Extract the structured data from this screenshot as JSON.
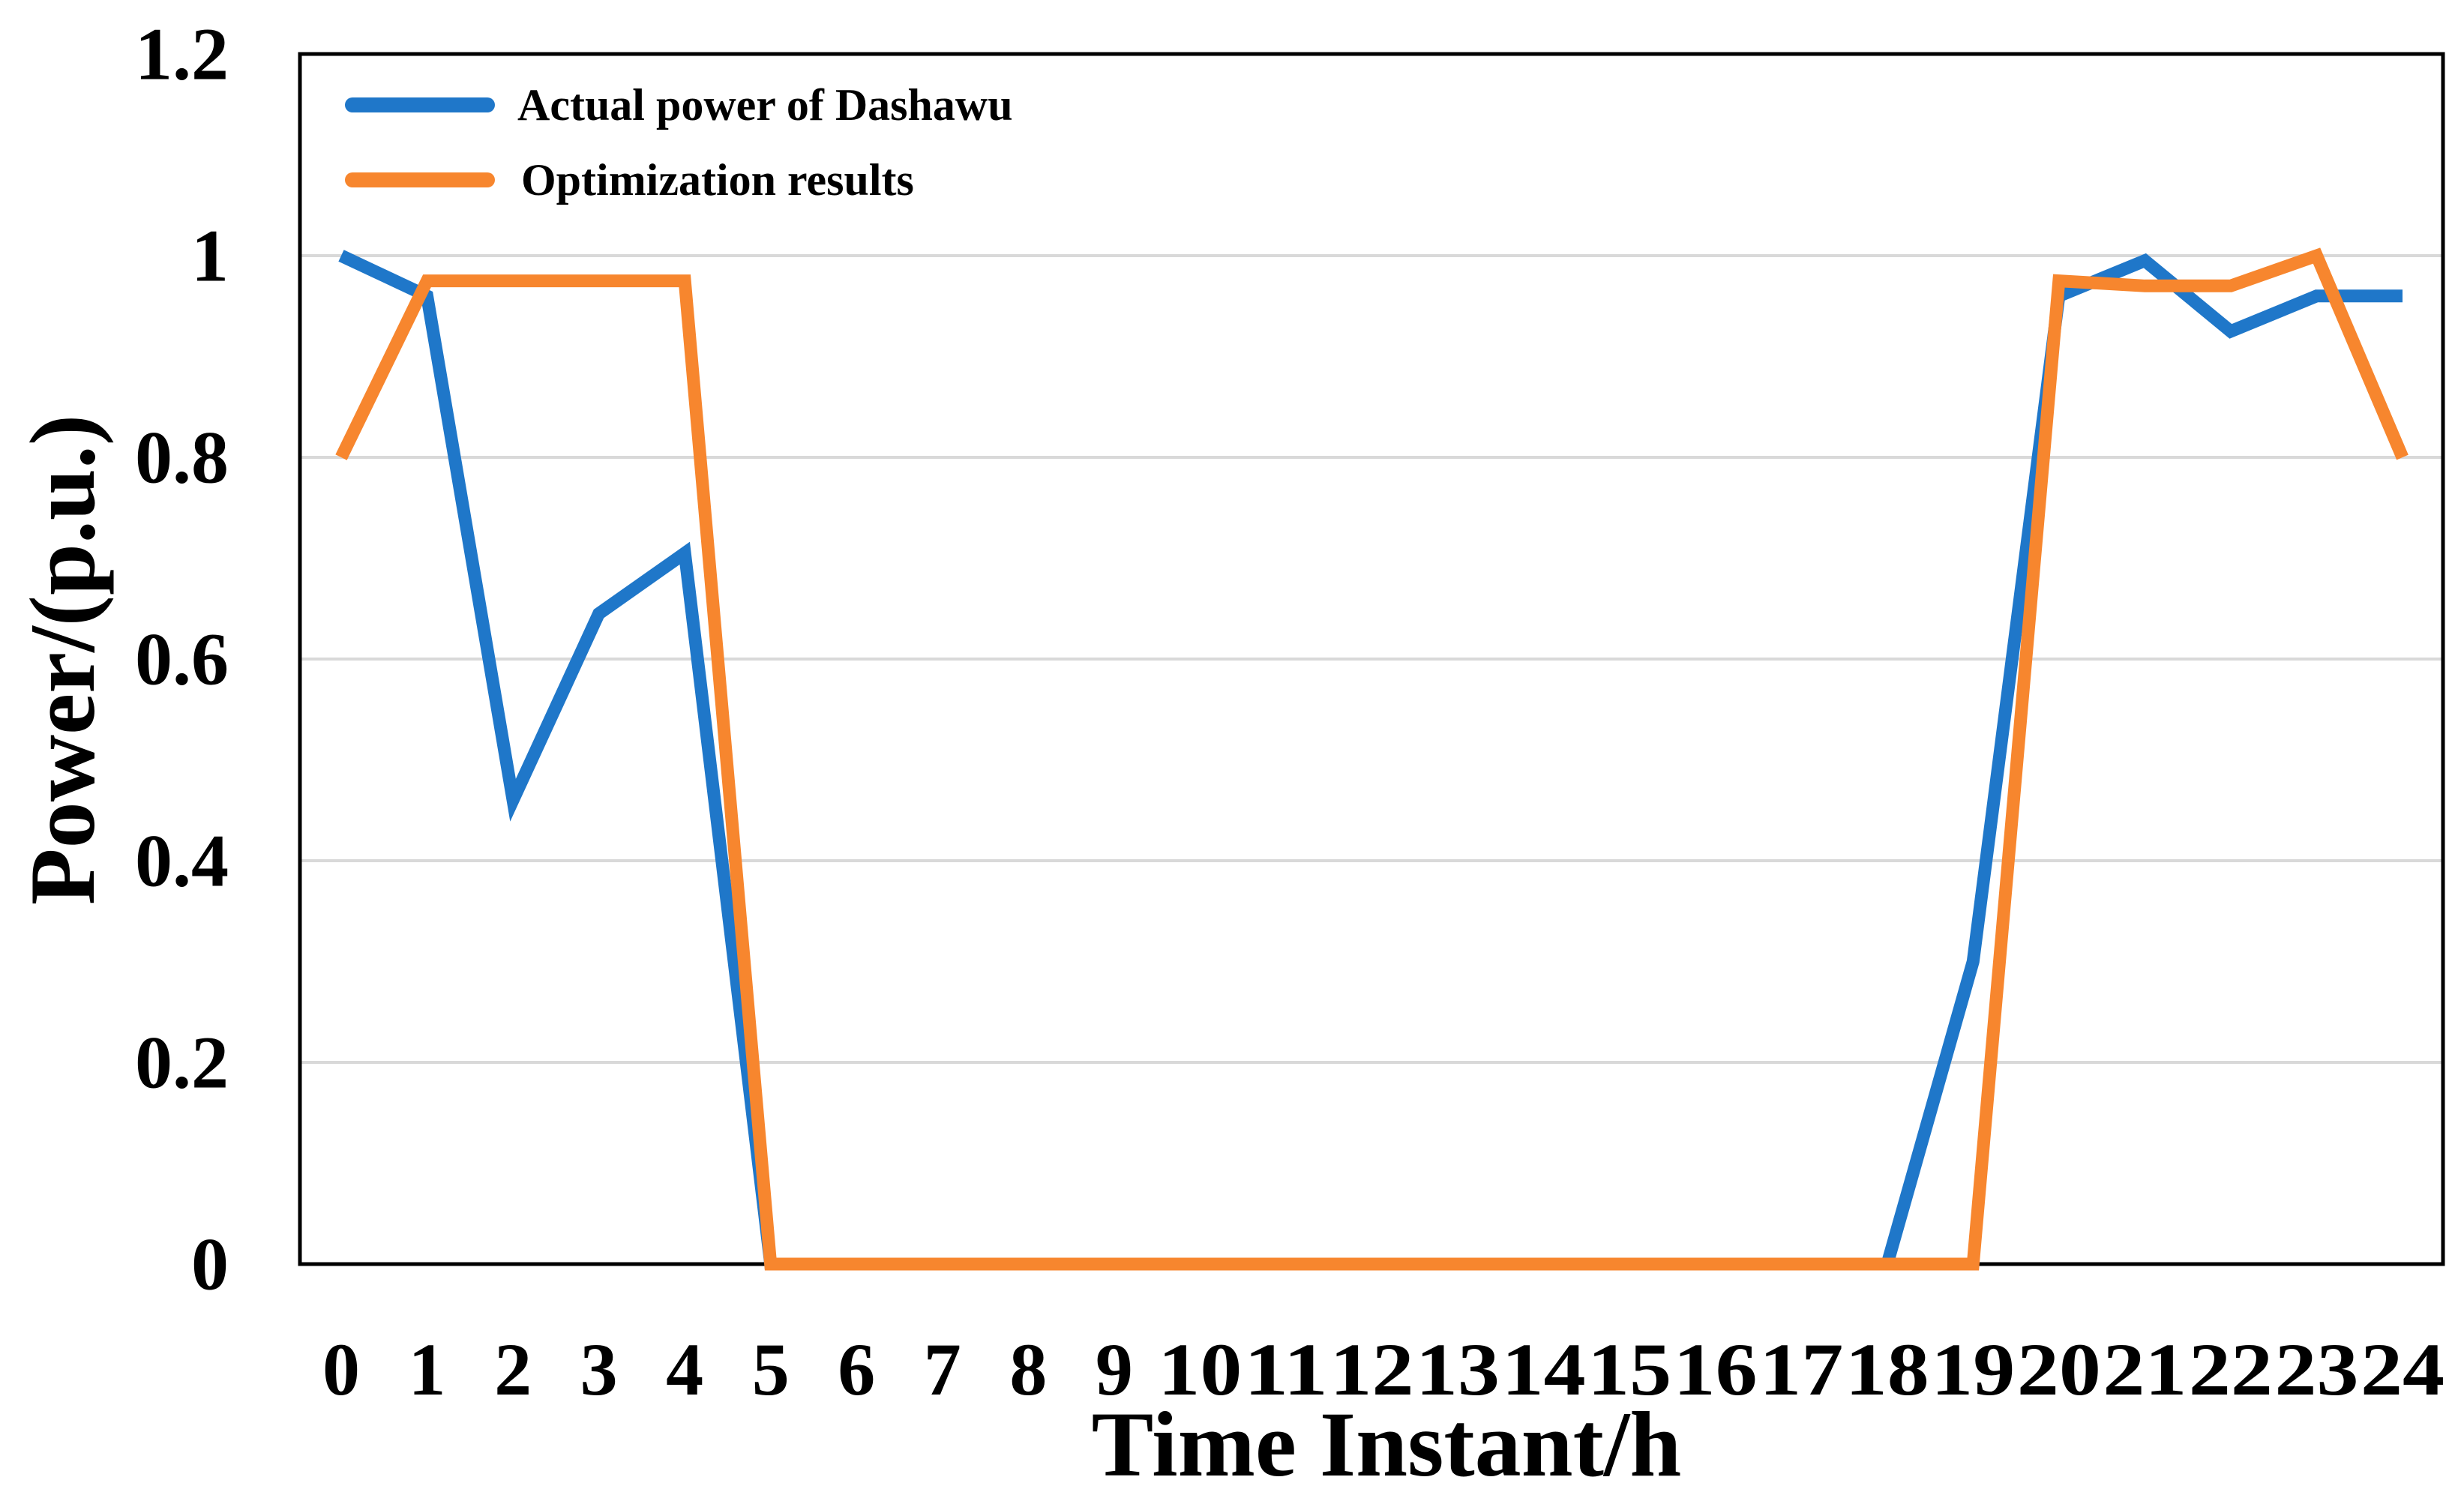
{
  "chart_data": {
    "type": "line",
    "xlabel": "Time Instant/h",
    "ylabel": "Power/(p.u.)",
    "x": [
      0,
      1,
      2,
      3,
      4,
      5,
      6,
      7,
      8,
      9,
      10,
      11,
      12,
      13,
      14,
      15,
      16,
      17,
      18,
      19,
      20,
      21,
      22,
      23,
      24
    ],
    "x_tick_labels": [
      "0",
      "1",
      "2",
      "3",
      "4",
      "5",
      "6",
      "7",
      "8",
      "9",
      "10",
      "11",
      "12",
      "13",
      "14",
      "15",
      "16",
      "17",
      "18",
      "19",
      "20",
      "21",
      "22",
      "23",
      "24"
    ],
    "ylim": [
      0,
      1.2
    ],
    "y_ticks": [
      0,
      0.2,
      0.4,
      0.6,
      0.8,
      1,
      1.2
    ],
    "y_tick_labels": [
      "0",
      "0.2",
      "0.4",
      "0.6",
      "0.8",
      "1",
      "1.2"
    ],
    "grid": "horizontal",
    "legend_position": "top-left",
    "series": [
      {
        "name": "Actual power of Dashawu",
        "color": "#1f77c9",
        "values": [
          1.0,
          0.96,
          0.46,
          0.645,
          0.705,
          0,
          0,
          0,
          0,
          0,
          0,
          0,
          0,
          0,
          0,
          0,
          0,
          0,
          0,
          0.3,
          0.96,
          0.995,
          0.925,
          0.96,
          0.96
        ]
      },
      {
        "name": "Optimization results",
        "color": "#f7862e",
        "values": [
          0.8,
          0.975,
          0.975,
          0.975,
          0.975,
          0,
          0,
          0,
          0,
          0,
          0,
          0,
          0,
          0,
          0,
          0,
          0,
          0,
          0,
          0,
          0.975,
          0.97,
          0.97,
          1.0,
          0.8
        ]
      }
    ]
  }
}
